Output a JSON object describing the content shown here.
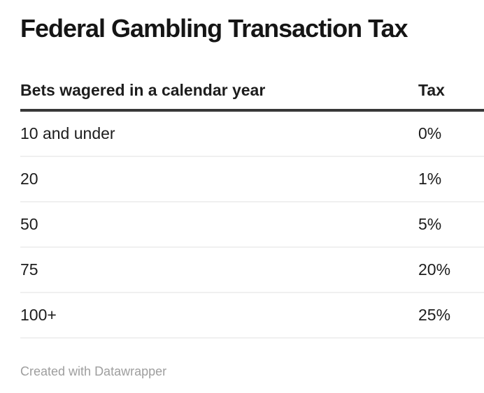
{
  "title": "Federal Gambling Transaction Tax",
  "table": {
    "columns": [
      {
        "label": "Bets wagered in a calendar year"
      },
      {
        "label": "Tax"
      }
    ],
    "rows": [
      {
        "bets": "10 and under",
        "tax": "0%"
      },
      {
        "bets": "20",
        "tax": "1%"
      },
      {
        "bets": "50",
        "tax": "5%"
      },
      {
        "bets": "75",
        "tax": "20%"
      },
      {
        "bets": "100+",
        "tax": "25%"
      }
    ]
  },
  "footer": {
    "prefix": "Created with ",
    "link_label": "Datawrapper"
  },
  "colors": {
    "title_text": "#151515",
    "body_text": "#1d1d1d",
    "header_rule": "#383838",
    "row_divider": "#f0f0f0",
    "footer_text": "#9e9e9e",
    "background": "#ffffff"
  },
  "chart_data": {
    "type": "table",
    "title": "Federal Gambling Transaction Tax",
    "columns": [
      "Bets wagered in a calendar year",
      "Tax"
    ],
    "rows": [
      [
        "10 and under",
        "0%"
      ],
      [
        "20",
        "1%"
      ],
      [
        "50",
        "5%"
      ],
      [
        "75",
        "20%"
      ],
      [
        "100+",
        "25%"
      ]
    ],
    "tax_values_percent": [
      0,
      1,
      5,
      20,
      25
    ],
    "layout_hints": {
      "tax_column_align": "left",
      "header_rule": "thick dark line under header",
      "row_dividers": "thin light gray lines",
      "grid": "horizontal only"
    }
  }
}
